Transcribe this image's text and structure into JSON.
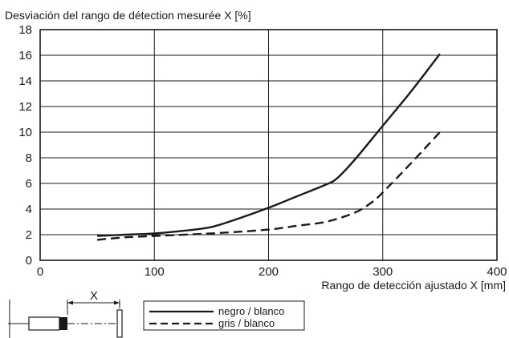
{
  "chart_data": {
    "type": "line",
    "title": "",
    "ylabel": "Desviación del rango de détection mesurée X [%]",
    "xlabel": "Rango de detección ajustado X [mm]",
    "xlim": [
      0,
      400
    ],
    "ylim": [
      0,
      18
    ],
    "x_ticks": [
      0,
      100,
      200,
      300,
      400
    ],
    "y_ticks": [
      0,
      2,
      4,
      6,
      8,
      10,
      12,
      14,
      16,
      18
    ],
    "grid": true,
    "legend_position": "bottom",
    "series": [
      {
        "name": "negro / blanco",
        "style": "solid",
        "color": "#1a1a1a",
        "x": [
          50,
          75,
          100,
          125,
          150,
          175,
          200,
          225,
          250,
          260,
          275,
          300,
          325,
          350
        ],
        "y": [
          1.9,
          2.0,
          2.1,
          2.3,
          2.6,
          3.3,
          4.1,
          5.0,
          5.9,
          6.4,
          7.8,
          10.5,
          13.2,
          16.1
        ]
      },
      {
        "name": "gris / blanco",
        "style": "dashed",
        "color": "#1a1a1a",
        "x": [
          50,
          75,
          100,
          150,
          200,
          225,
          250,
          275,
          290,
          300,
          325,
          350
        ],
        "y": [
          1.6,
          1.8,
          1.9,
          2.1,
          2.4,
          2.7,
          3.0,
          3.7,
          4.5,
          5.3,
          7.6,
          10.0
        ]
      }
    ],
    "diagram": {
      "distance_label": "X"
    }
  }
}
